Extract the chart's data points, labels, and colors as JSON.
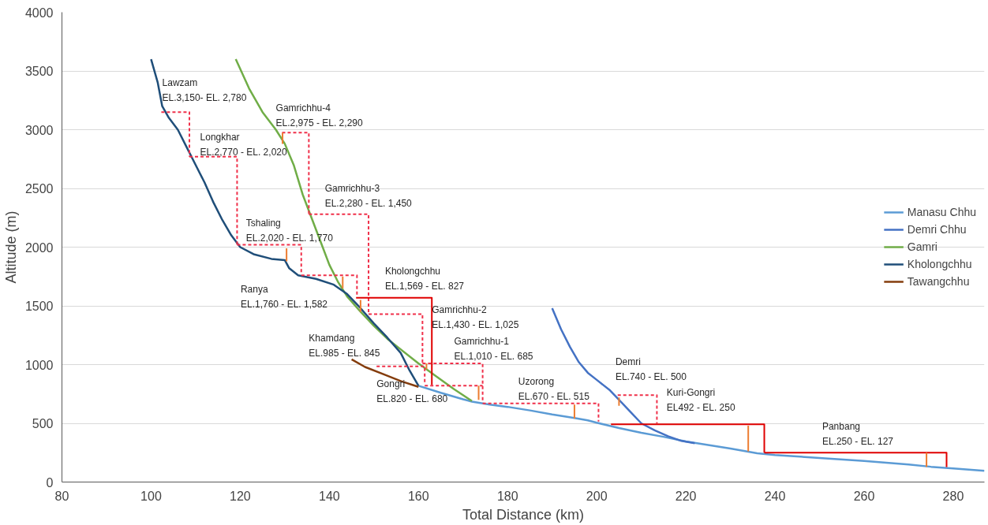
{
  "chart_data": {
    "type": "line",
    "xlabel": "Total Distance (km)",
    "ylabel": "Altitude (m)",
    "xlim": [
      80,
      287
    ],
    "ylim": [
      0,
      4000
    ],
    "xticks": [
      80,
      100,
      120,
      140,
      160,
      180,
      200,
      220,
      240,
      260,
      280
    ],
    "yticks": [
      0,
      500,
      1000,
      1500,
      2000,
      2500,
      3000,
      3500,
      4000
    ],
    "grid": "y",
    "legend": "right",
    "series": [
      {
        "name": "Manasu Chhu",
        "color": "#5b9bd5",
        "x": [
          160,
          165,
          170,
          172,
          176,
          180,
          185,
          190,
          195,
          198,
          200,
          205,
          210,
          215,
          220,
          225,
          230,
          233,
          236,
          240,
          250,
          260,
          270,
          275,
          280,
          287
        ],
        "values": [
          820,
          760,
          705,
          685,
          660,
          640,
          610,
          575,
          545,
          525,
          505,
          460,
          420,
          385,
          345,
          315,
          285,
          265,
          245,
          230,
          205,
          180,
          150,
          130,
          115,
          95
        ]
      },
      {
        "name": "Demri Chhu",
        "color": "#4472c4",
        "x": [
          190,
          192,
          194,
          196,
          198,
          200,
          203,
          206,
          208,
          210,
          213,
          216,
          219,
          222
        ],
        "values": [
          1480,
          1300,
          1150,
          1020,
          930,
          870,
          780,
          660,
          580,
          500,
          440,
          390,
          350,
          330
        ]
      },
      {
        "name": "Gamri",
        "color": "#70ad47",
        "x": [
          119,
          122,
          125,
          128,
          130,
          132,
          134,
          136,
          138,
          140,
          142,
          144,
          147,
          150,
          153,
          156,
          160,
          164,
          168,
          172
        ],
        "values": [
          3600,
          3350,
          3150,
          3000,
          2880,
          2700,
          2450,
          2250,
          2050,
          1850,
          1700,
          1580,
          1450,
          1330,
          1220,
          1130,
          1010,
          900,
          790,
          690
        ]
      },
      {
        "name": "Kholongchhu",
        "color": "#1f4e79",
        "x": [
          100,
          101.5,
          102.5,
          104,
          106,
          108,
          110,
          112,
          114,
          116,
          118,
          120,
          123,
          127,
          130,
          131,
          133,
          137,
          141,
          144,
          147,
          150,
          153,
          156,
          158,
          160
        ],
        "values": [
          3600,
          3400,
          3200,
          3100,
          3000,
          2850,
          2700,
          2550,
          2380,
          2230,
          2100,
          2000,
          1940,
          1900,
          1890,
          1820,
          1760,
          1730,
          1680,
          1600,
          1480,
          1350,
          1230,
          1100,
          950,
          820
        ]
      },
      {
        "name": "Tawangchhu",
        "color": "#843c0c",
        "x": [
          145,
          148,
          152,
          156,
          160
        ],
        "values": [
          1045,
          980,
          920,
          860,
          810
        ]
      },
      {
        "color": "#f0304a",
        "line_style": "dashed",
        "x": [
          102.3,
          108.6,
          108.6,
          null,
          108.6,
          119.3,
          119.3,
          null,
          119.3,
          133.7,
          133.7,
          null,
          133.7,
          146.2,
          146.2,
          null,
          129.4,
          135.4,
          135.4,
          null,
          135.4,
          148.8,
          148.8,
          null,
          148.8,
          160.9,
          160.9,
          null,
          160.9,
          174.4,
          174.4,
          null,
          150.6,
          161.4,
          161.4,
          null,
          161.4,
          174.4,
          null,
          174.4,
          200.4,
          200.4,
          null,
          204.7,
          213.5,
          213.5
        ],
        "values": [
          3150,
          3150,
          2770,
          null,
          2770,
          2770,
          2020,
          null,
          2020,
          2020,
          1770,
          null,
          1760,
          1760,
          1582,
          null,
          2975,
          2975,
          2280,
          null,
          2280,
          2280,
          1430,
          null,
          1430,
          1430,
          1010,
          null,
          1010,
          1010,
          685,
          null,
          985,
          985,
          845,
          null,
          820,
          820,
          null,
          670,
          670,
          515,
          null,
          740,
          740,
          500
        ]
      },
      {
        "color": "#e00000",
        "line_style": "solid",
        "x": [
          146,
          163,
          163,
          null,
          203.2,
          237.6,
          237.6,
          null,
          237.6,
          278.5,
          278.5
        ],
        "values": [
          1569,
          1569,
          827,
          null,
          492,
          492,
          250,
          null,
          250,
          250,
          127
        ]
      },
      {
        "color": "#ed7d31",
        "line_style": "solid",
        "x": [
          129.5,
          129.5,
          null,
          130.4,
          130.4,
          null,
          143,
          143,
          null,
          147,
          147,
          null,
          161.8,
          161.8,
          null,
          173.5,
          173.5,
          null,
          195,
          195,
          null,
          205,
          205,
          null,
          234,
          234,
          null,
          274,
          274
        ],
        "values": [
          2975,
          2880,
          null,
          1990,
          1880,
          null,
          1750,
          1650,
          null,
          1550,
          1450,
          null,
          1010,
          960,
          null,
          820,
          700,
          null,
          660,
          540,
          null,
          720,
          650,
          null,
          480,
          260,
          null,
          250,
          130
        ]
      }
    ],
    "annotations": [
      "Lawzam\nEL.3,150- EL. 2,780",
      "Gamrichhu-4\nEL.2,975 - EL. 2,290",
      "Longkhar\nEL.2,770 - EL. 2,020",
      "Gamrichhu-3\nEL.2,280 - EL. 1,450",
      "Tshaling\nEL.2,020 - EL. 1,770",
      "Kholongchhu\nEL.1,569 - EL. 827",
      "Ranya\nEL.1,760 - EL. 1,582",
      "Gamrichhu-2\nEL.1,430 - EL. 1,025",
      "Khamdang\nEL.985 - EL. 845",
      "Gamrichhu-1\nEL.1,010 - EL. 685",
      "Gongri\nEL.820 - EL. 680",
      "Uzorong\nEL.670 - EL. 515",
      "Demri\nEL.740 - EL. 500",
      "Kuri-Gongri\nEL492 - EL. 250",
      "Panbang\nEL.250 - EL. 127"
    ]
  }
}
